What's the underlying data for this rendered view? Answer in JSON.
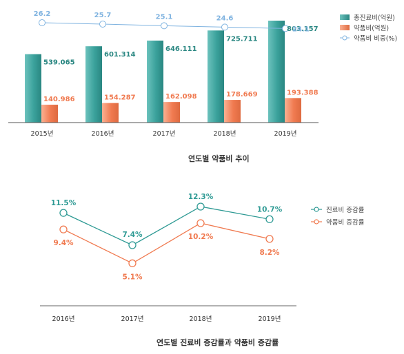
{
  "chart_data": [
    {
      "type": "bar",
      "title": "연도별 약품비 추이",
      "categories": [
        "2015년",
        "2016년",
        "2017년",
        "2018년",
        "2019년"
      ],
      "series": [
        {
          "name": "총진료비(억원)",
          "values": [
            539.065,
            601.314,
            646.111,
            725.711,
            803.157
          ],
          "value_labels": [
            "539.065",
            "601.314",
            "646.111",
            "725.711",
            "803.157"
          ],
          "color": "#3aa19b"
        },
        {
          "name": "약품비(억원)",
          "values": [
            140.986,
            154.287,
            162.098,
            178.669,
            193.388
          ],
          "value_labels": [
            "140.986",
            "154.287",
            "162.098",
            "178.669",
            "193.388"
          ],
          "color": "#f07a50"
        },
        {
          "name": "약품비 비중(%)",
          "type": "line",
          "values": [
            26.2,
            25.7,
            25.1,
            24.6,
            24.1
          ],
          "value_labels": [
            "26.2",
            "25.7",
            "25.1",
            "24.6",
            "24.1"
          ],
          "color": "#7fb3e0"
        }
      ],
      "legend_position": "right",
      "grid": false
    },
    {
      "type": "line",
      "title": "연도별 진료비 증감률과 약품비 증감률",
      "categories": [
        "2016년",
        "2017년",
        "2018년",
        "2019년"
      ],
      "series": [
        {
          "name": "진료비 증감률",
          "values": [
            11.5,
            7.4,
            12.3,
            10.7
          ],
          "value_labels": [
            "11.5%",
            "7.4%",
            "12.3%",
            "10.7%"
          ],
          "color": "#2e9a94"
        },
        {
          "name": "약품비 증감률",
          "values": [
            9.4,
            5.1,
            10.2,
            8.2
          ],
          "value_labels": [
            "9.4%",
            "5.1%",
            "10.2%",
            "8.2%"
          ],
          "color": "#f07a50"
        }
      ],
      "legend_position": "right",
      "grid": false
    }
  ]
}
